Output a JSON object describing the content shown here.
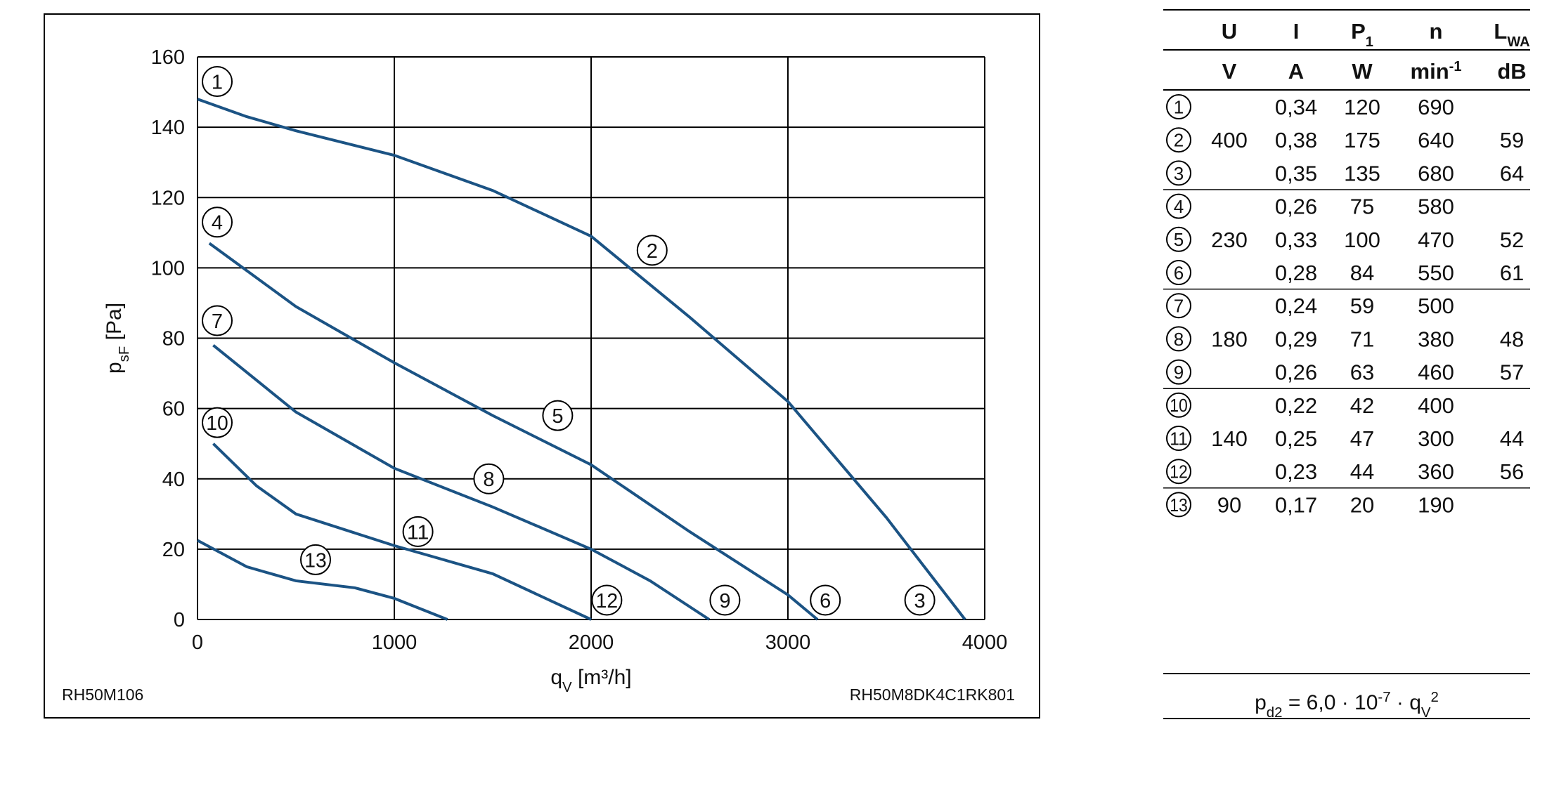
{
  "chart_data": {
    "type": "line",
    "color": "#1b5384",
    "ylabel": [
      {
        "text": "p",
        "style": "normal"
      },
      {
        "text": "sF",
        "style": "sub"
      },
      {
        "text": " [Pa]",
        "style": "normal"
      }
    ],
    "xlabel": [
      {
        "text": "q",
        "style": "normal"
      },
      {
        "text": "V",
        "style": "sub"
      },
      {
        "text": " [m³/h]",
        "style": "normal"
      }
    ],
    "xlim": [
      0,
      4000
    ],
    "ylim": [
      0,
      160
    ],
    "xticks": [
      0,
      1000,
      2000,
      3000,
      4000
    ],
    "yticks": [
      0,
      20,
      40,
      60,
      80,
      100,
      120,
      140,
      160
    ],
    "grid": true,
    "series": [
      {
        "x": [
          0,
          250,
          500,
          1000,
          1500,
          2000,
          2500,
          3000,
          3500,
          3900
        ],
        "values": [
          148,
          143,
          139,
          132,
          122,
          109,
          86,
          62,
          29,
          0
        ]
      },
      {
        "x": [
          60,
          500,
          1000,
          1500,
          2000,
          2500,
          3000,
          3150
        ],
        "values": [
          107,
          89,
          73,
          58,
          44,
          25,
          7,
          0
        ]
      },
      {
        "x": [
          80,
          500,
          1000,
          1500,
          2000,
          2300,
          2600
        ],
        "values": [
          78,
          59,
          43,
          32,
          20,
          11,
          0
        ]
      },
      {
        "x": [
          80,
          300,
          500,
          1000,
          1500,
          2000
        ],
        "values": [
          50,
          38,
          30,
          21,
          13,
          0
        ]
      },
      {
        "x": [
          0,
          250,
          500,
          800,
          1000,
          1270
        ],
        "values": [
          22.5,
          15,
          11,
          9,
          6,
          0
        ]
      }
    ],
    "annotations": [
      {
        "text": "1",
        "x": 100,
        "y": 153
      },
      {
        "text": "2",
        "x": 2310,
        "y": 105
      },
      {
        "text": "3",
        "x": 3670,
        "y": 5.5
      },
      {
        "text": "4",
        "x": 100,
        "y": 113
      },
      {
        "text": "5",
        "x": 1830,
        "y": 58
      },
      {
        "text": "6",
        "x": 3190,
        "y": 5.5
      },
      {
        "text": "7",
        "x": 100,
        "y": 85
      },
      {
        "text": "8",
        "x": 1480,
        "y": 40
      },
      {
        "text": "9",
        "x": 2680,
        "y": 5.5
      },
      {
        "text": "10",
        "x": 100,
        "y": 56
      },
      {
        "text": "11",
        "x": 1120,
        "y": 25
      },
      {
        "text": "12",
        "x": 2080,
        "y": 5.5
      },
      {
        "text": "13",
        "x": 600,
        "y": 17
      }
    ],
    "footnote_left": "RH50M106",
    "footnote_right": "RH50M8DK4C1RK801"
  },
  "table": {
    "header": [
      [
        {
          "text": "U"
        },
        {
          "text": "I"
        },
        {
          "text": "P",
          "sub": "1"
        },
        {
          "text": "n"
        },
        {
          "text": "L",
          "sub": "WA"
        }
      ],
      [
        {
          "text": "V"
        },
        {
          "text": "A"
        },
        {
          "text": "W"
        },
        {
          "text": "min",
          "sup": "-1"
        },
        {
          "text": "dB"
        }
      ]
    ],
    "rows": [
      [
        "1",
        null,
        "0,34",
        "120",
        "690",
        null
      ],
      [
        "2",
        "400",
        "0,38",
        "175",
        "640",
        "59"
      ],
      [
        "3",
        null,
        "0,35",
        "135",
        "680",
        "64"
      ],
      [
        "4",
        null,
        "0,26",
        "75",
        "580",
        null
      ],
      [
        "5",
        "230",
        "0,33",
        "100",
        "470",
        "52"
      ],
      [
        "6",
        null,
        "0,28",
        "84",
        "550",
        "61"
      ],
      [
        "7",
        null,
        "0,24",
        "59",
        "500",
        null
      ],
      [
        "8",
        "180",
        "0,29",
        "71",
        "380",
        "48"
      ],
      [
        "9",
        null,
        "0,26",
        "63",
        "460",
        "57"
      ],
      [
        "10",
        null,
        "0,22",
        "42",
        "400",
        null
      ],
      [
        "11",
        "140",
        "0,25",
        "47",
        "300",
        "44"
      ],
      [
        "12",
        null,
        "0,23",
        "44",
        "360",
        "56"
      ],
      [
        "13",
        "90",
        "0,17",
        "20",
        "190",
        null
      ]
    ],
    "formula": [
      {
        "text": "p",
        "style": "normal"
      },
      {
        "text": "d2",
        "style": "sub"
      },
      {
        "text": " = 6,0 · 10",
        "style": "normal"
      },
      {
        "text": "-7",
        "style": "sup"
      },
      {
        "text": " · q",
        "style": "normal"
      },
      {
        "text": "V",
        "style": "sub"
      },
      {
        "text": "2",
        "style": "sup"
      }
    ]
  }
}
